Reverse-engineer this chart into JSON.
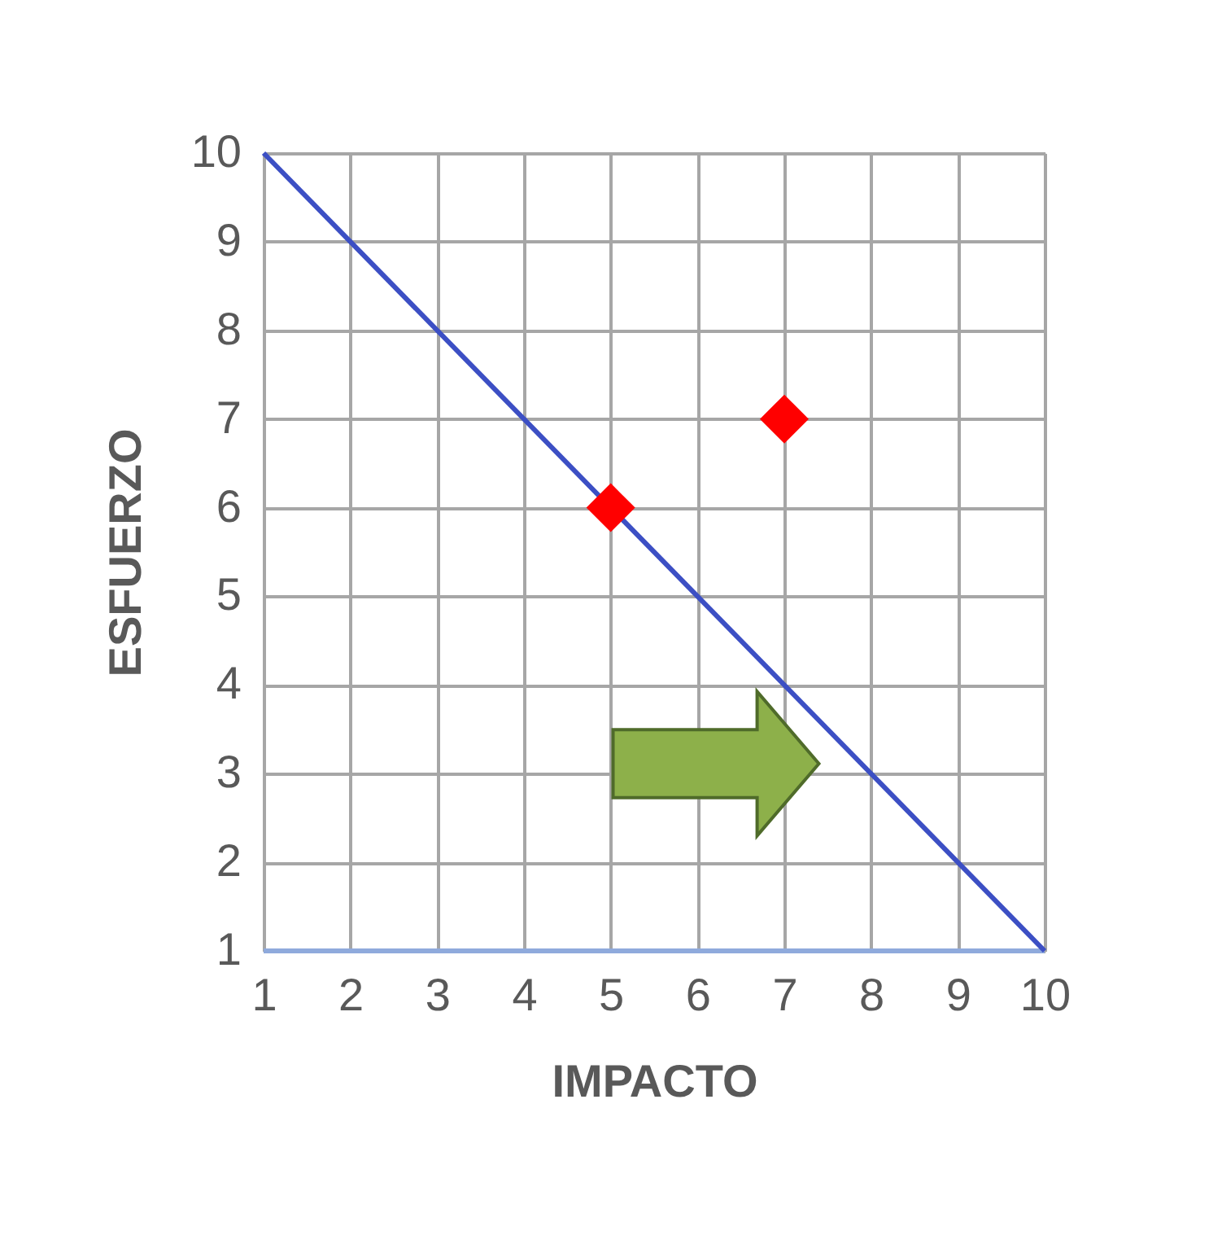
{
  "chart_data": {
    "type": "scatter",
    "xlabel": "IMPACTO",
    "ylabel": "ESFUERZO",
    "xlim": [
      1,
      10
    ],
    "ylim": [
      1,
      10
    ],
    "xticks": [
      1,
      2,
      3,
      4,
      5,
      6,
      7,
      8,
      9,
      10
    ],
    "yticks": [
      1,
      2,
      3,
      4,
      5,
      6,
      7,
      8,
      9,
      10
    ],
    "grid": true,
    "series": [
      {
        "type": "line",
        "color": "#3c4fc4",
        "x": [
          1,
          10
        ],
        "values": [
          10,
          1
        ],
        "marker": "none",
        "line_style": "solid"
      },
      {
        "color": "#ff0000",
        "x": [
          5,
          7
        ],
        "values": [
          6,
          7
        ],
        "marker": "diamond"
      }
    ]
  }
}
